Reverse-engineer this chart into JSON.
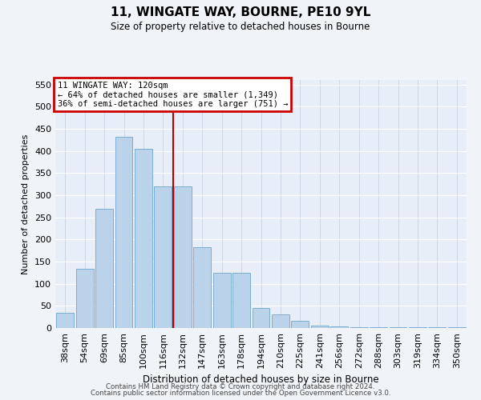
{
  "title": "11, WINGATE WAY, BOURNE, PE10 9YL",
  "subtitle": "Size of property relative to detached houses in Bourne",
  "xlabel": "Distribution of detached houses by size in Bourne",
  "ylabel": "Number of detached properties",
  "categories": [
    "38sqm",
    "54sqm",
    "69sqm",
    "85sqm",
    "100sqm",
    "116sqm",
    "132sqm",
    "147sqm",
    "163sqm",
    "178sqm",
    "194sqm",
    "210sqm",
    "225sqm",
    "241sqm",
    "256sqm",
    "272sqm",
    "288sqm",
    "303sqm",
    "319sqm",
    "334sqm",
    "350sqm"
  ],
  "bar_values": [
    35,
    133,
    270,
    432,
    405,
    320,
    320,
    183,
    125,
    125,
    46,
    30,
    17,
    5,
    3,
    1,
    1,
    1,
    1,
    1,
    1
  ],
  "bar_color": "#bad3eb",
  "bar_edgecolor": "#7aadd4",
  "background_color": "#e8eef8",
  "grid_color": "#c8d4e8",
  "vline_color": "#bb0000",
  "annotation_text": "11 WINGATE WAY: 120sqm\n← 64% of detached houses are smaller (1,349)\n36% of semi-detached houses are larger (751) →",
  "annotation_box_edgecolor": "#cc0000",
  "ylim": [
    0,
    560
  ],
  "yticks": [
    0,
    50,
    100,
    150,
    200,
    250,
    300,
    350,
    400,
    450,
    500,
    550
  ],
  "fig_bg": "#f0f4f8",
  "footer1": "Contains HM Land Registry data © Crown copyright and database right 2024.",
  "footer2": "Contains public sector information licensed under the Open Government Licence v3.0."
}
